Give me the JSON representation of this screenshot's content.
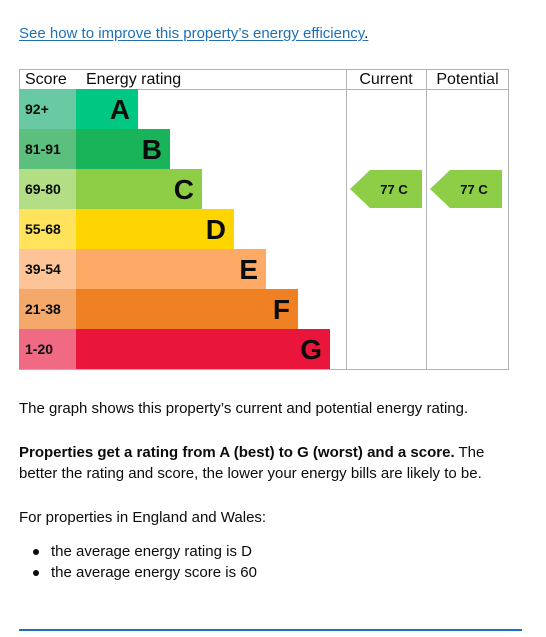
{
  "improve_link": {
    "text": "See how to improve this property’s energy efficiency",
    "trailing": "."
  },
  "chart_data": {
    "type": "bar",
    "headers": {
      "score": "Score",
      "rating": "Energy rating",
      "current": "Current",
      "potential": "Potential"
    },
    "bands": [
      {
        "letter": "A",
        "range": "92+",
        "color": "#00c781",
        "score_color": "#69c9a2"
      },
      {
        "letter": "B",
        "range": "81-91",
        "color": "#19b459",
        "score_color": "#5cbf7e"
      },
      {
        "letter": "C",
        "range": "69-80",
        "color": "#8dce46",
        "score_color": "#b3de86"
      },
      {
        "letter": "D",
        "range": "55-68",
        "color": "#ffd500",
        "score_color": "#ffe35c"
      },
      {
        "letter": "E",
        "range": "39-54",
        "color": "#fcaa65",
        "score_color": "#fdc597"
      },
      {
        "letter": "F",
        "range": "21-38",
        "color": "#ef8023",
        "score_color": "#f4a86a"
      },
      {
        "letter": "G",
        "range": "1-20",
        "color": "#e9153b",
        "score_color": "#f06a83"
      }
    ],
    "current": {
      "score": 77,
      "band": "C",
      "label": "77 C",
      "color": "#8dce46"
    },
    "potential": {
      "score": 77,
      "band": "C",
      "label": "77 C",
      "color": "#8dce46"
    }
  },
  "text": {
    "graph_description": "The graph shows this property’s current and potential energy rating.",
    "rating_bold": "Properties get a rating from A (best) to G (worst) and a score.",
    "rating_rest": " The better the rating and score, the lower your energy bills are likely to be.",
    "england_wales": "For properties in England and Wales:",
    "bullets": [
      "the average energy rating is D",
      "the average energy score is 60"
    ]
  }
}
